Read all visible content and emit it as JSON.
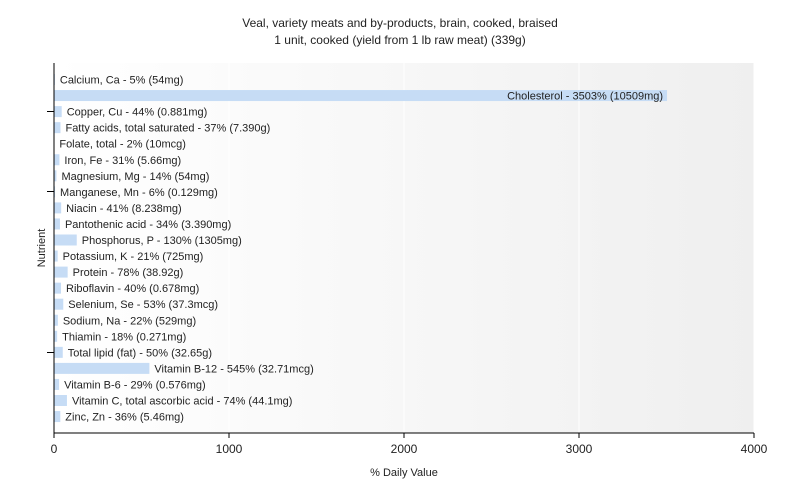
{
  "chart_data": {
    "type": "bar",
    "orientation": "horizontal",
    "title": "Veal, variety meats and by-products, brain, cooked, braised",
    "subtitle": "1 unit, cooked (yield from 1 lb raw meat) (339g)",
    "xlabel": "% Daily Value",
    "ylabel": "Nutrient",
    "xlim": [
      0,
      4000
    ],
    "xticks": [
      0,
      1000,
      2000,
      3000,
      4000
    ],
    "grid": true,
    "bar_color": "#c6dcf5",
    "categories": [
      "Calcium, Ca",
      "Cholesterol",
      "Copper, Cu",
      "Fatty acids, total saturated",
      "Folate, total",
      "Iron, Fe",
      "Magnesium, Mg",
      "Manganese, Mn",
      "Niacin",
      "Pantothenic acid",
      "Phosphorus, P",
      "Potassium, K",
      "Protein",
      "Riboflavin",
      "Selenium, Se",
      "Sodium, Na",
      "Thiamin",
      "Total lipid (fat)",
      "Vitamin B-12",
      "Vitamin B-6",
      "Vitamin C, total ascorbic acid",
      "Zinc, Zn"
    ],
    "values": [
      5,
      3503,
      44,
      37,
      2,
      31,
      14,
      6,
      41,
      34,
      130,
      21,
      78,
      40,
      53,
      22,
      18,
      50,
      545,
      29,
      74,
      36
    ],
    "labels": [
      "Calcium, Ca - 5% (54mg)",
      "Cholesterol - 3503% (10509mg)",
      "Copper, Cu - 44% (0.881mg)",
      "Fatty acids, total saturated - 37% (7.390g)",
      "Folate, total - 2% (10mcg)",
      "Iron, Fe - 31% (5.66mg)",
      "Magnesium, Mg - 14% (54mg)",
      "Manganese, Mn - 6% (0.129mg)",
      "Niacin - 41% (8.238mg)",
      "Pantothenic acid - 34% (3.390mg)",
      "Phosphorus, P - 130% (1305mg)",
      "Potassium, K - 21% (725mg)",
      "Protein - 78% (38.92g)",
      "Riboflavin - 40% (0.678mg)",
      "Selenium, Se - 53% (37.3mcg)",
      "Sodium, Na - 22% (529mg)",
      "Thiamin - 18% (0.271mg)",
      "Total lipid (fat) - 50% (32.65g)",
      "Vitamin B-12 - 545% (32.71mcg)",
      "Vitamin B-6 - 29% (0.576mg)",
      "Vitamin C, total ascorbic acid - 74% (44.1mg)",
      "Zinc, Zn - 36% (5.46mg)"
    ]
  }
}
